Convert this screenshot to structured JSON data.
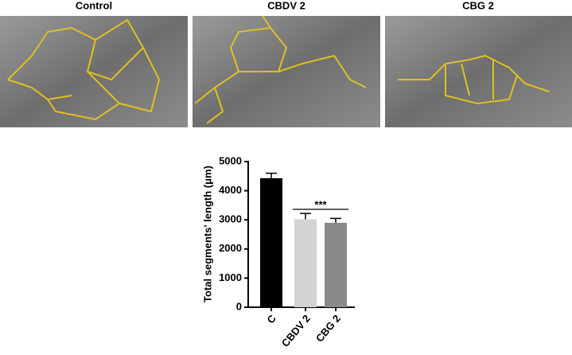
{
  "panels": [
    {
      "title": "Control"
    },
    {
      "title": "CBDV 2"
    },
    {
      "title": "CBG 2"
    }
  ],
  "chart_data": {
    "type": "bar",
    "ylabel": "Total segments' length (μm)",
    "categories": [
      "C",
      "CBDV 2",
      "CBG 2"
    ],
    "values": [
      4430,
      3020,
      2900
    ],
    "errors": [
      170,
      200,
      150
    ],
    "colors": [
      "#000000",
      "#d3d3d3",
      "#8a8a8a"
    ],
    "ylim": [
      0,
      5000
    ],
    "yticks": [
      0,
      1000,
      2000,
      3000,
      4000,
      5000
    ],
    "annotation": "***"
  }
}
